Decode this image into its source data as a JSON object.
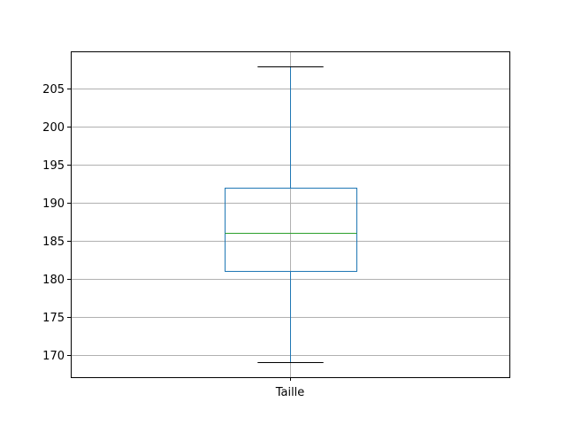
{
  "chart_data": {
    "type": "box",
    "title": "",
    "xlabel": "",
    "ylabel": "",
    "categories": [
      "Taille"
    ],
    "boxes": [
      {
        "name": "Taille",
        "whisker_low": 169,
        "q1": 181,
        "median": 186,
        "q3": 192,
        "whisker_high": 208
      }
    ],
    "ylim": [
      167.05,
      209.95
    ],
    "yticks": [
      170,
      175,
      180,
      185,
      190,
      195,
      200,
      205
    ],
    "grid": true,
    "colors": {
      "box": "#1f77b4",
      "median": "#2ca02c",
      "whisker": "#1f77b4",
      "cap": "#000000",
      "grid": "#b0b0b0",
      "axes": "#000000"
    }
  }
}
